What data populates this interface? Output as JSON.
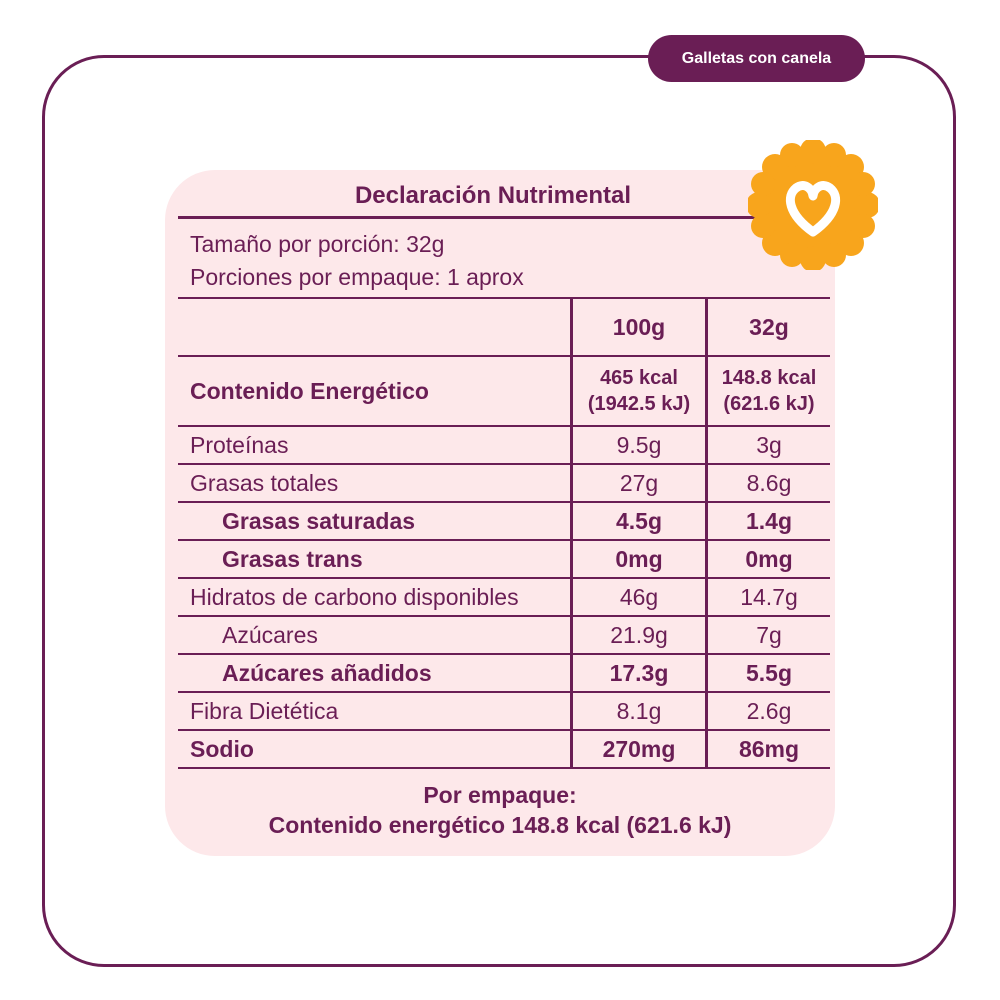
{
  "tag": "Galletas con canela",
  "label": {
    "title": "Declaración Nutrimental",
    "serving": [
      "Tamaño por porción: 32g",
      "Porciones por empaque: 1 aprox"
    ],
    "table": {
      "header": [
        "100g",
        "32g"
      ],
      "rows": [
        [
          "Contenido Energético",
          [
            "465 kcal",
            "(1942.5 kJ)"
          ],
          [
            "148.8 kcal",
            "(621.6 kJ)"
          ]
        ],
        [
          "Proteínas",
          "9.5g",
          "3g"
        ],
        [
          "Grasas totales",
          "27g",
          "8.6g"
        ],
        [
          "Grasas saturadas",
          "4.5g",
          "1.4g"
        ],
        [
          "Grasas trans",
          "0mg",
          "0mg"
        ],
        [
          "Hidratos de carbono disponibles",
          "46g",
          "14.7g"
        ],
        [
          "Azúcares",
          "21.9g",
          "7g"
        ],
        [
          "Azúcares añadidos",
          "17.3g",
          "5.5g"
        ],
        [
          "Fibra Dietética",
          "8.1g",
          "2.6g"
        ],
        [
          "Sodio",
          "270mg",
          "86mg"
        ]
      ]
    },
    "footer": [
      "Por empaque:",
      "Contenido energético 148.8 kcal (621.6 kJ)"
    ]
  }
}
